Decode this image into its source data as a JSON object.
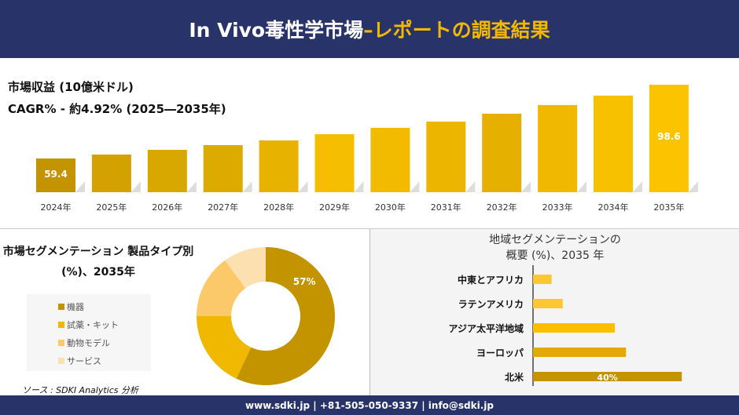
{
  "header": {
    "title_main": "In Vivo毒性学市場 ",
    "title_accent": "–レポートの調査結果"
  },
  "colors": {
    "header_bg": "#283469",
    "accent": "#f5b800"
  },
  "chart_data": [
    {
      "type": "bar",
      "title": "市場収益 (10億米ドル)",
      "subtitle": "CAGR% - 約4.92% (2025―2035年)",
      "categories": [
        "2024年",
        "2025年",
        "2026年",
        "2027年",
        "2028年",
        "2029年",
        "2030年",
        "2031年",
        "2032年",
        "2033年",
        "2034年",
        "2035年"
      ],
      "values": [
        59.4,
        61.5,
        64.0,
        66.5,
        69.0,
        72.3,
        75.7,
        79.0,
        83.2,
        87.8,
        92.8,
        98.6
      ],
      "data_labels": {
        "0": "59.4",
        "11": "98.6"
      },
      "colors": [
        "#c39400",
        "#d4a200",
        "#d8a700",
        "#ddab00",
        "#e8b300",
        "#f5be00",
        "#f2bb00",
        "#ebb500",
        "#e5b000",
        "#f0b900",
        "#f8c100",
        "#fcc400"
      ]
    },
    {
      "type": "pie",
      "title": "市場セグメンテーション 製品タイプ別 (%)、2035年",
      "categories": [
        "機器",
        "試薬・キット",
        "動物モデル",
        "サービス"
      ],
      "values": [
        57,
        18,
        15,
        10
      ],
      "data_labels": {
        "0": "57%"
      },
      "colors": [
        "#c39400",
        "#f0b800",
        "#fcc96a",
        "#fde0b0"
      ]
    },
    {
      "type": "bar",
      "orientation": "horizontal",
      "title": "地域セグメンテーションの",
      "title2": "概要 (%)、2035 年",
      "categories": [
        "中東とアフリカ",
        "ラテンアメリカ",
        "アジア太平洋地域",
        "ヨーロッパ",
        "北米"
      ],
      "values": [
        5,
        8,
        22,
        25,
        40
      ],
      "data_labels": {
        "4": "40%"
      },
      "colors": [
        "#fbc834",
        "#fbc834",
        "#fbbf00",
        "#e2aa00",
        "#c39400"
      ]
    }
  ],
  "source": "ソース : SDKI Analytics 分析",
  "footer": "www.sdki.jp | +81-505-050-9337 | info@sdki.jp"
}
